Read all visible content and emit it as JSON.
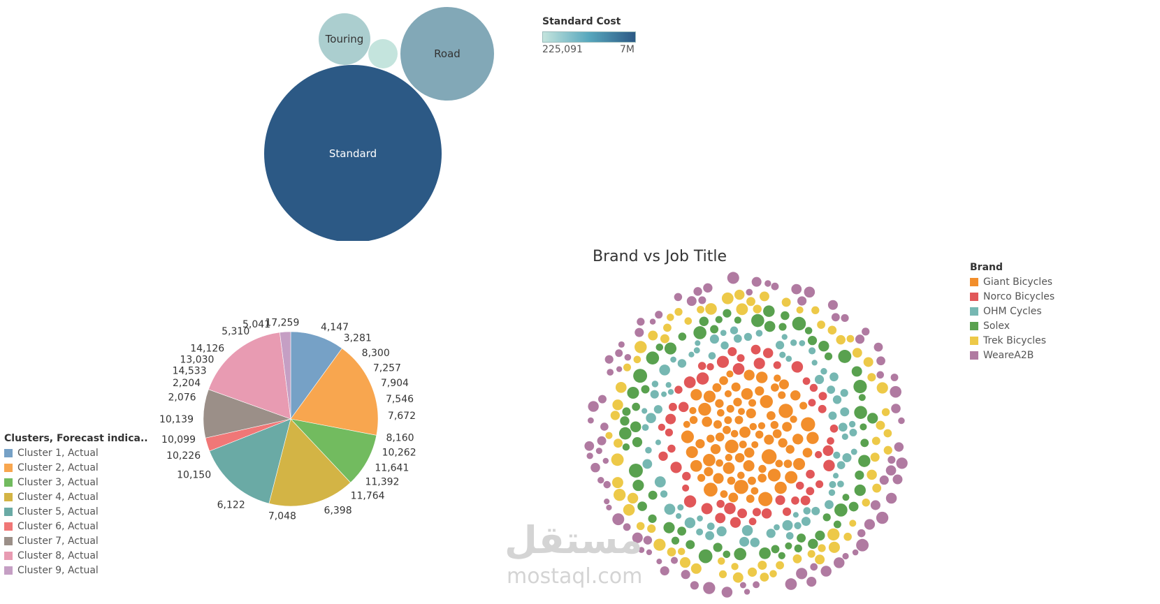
{
  "chart_data": [
    {
      "type": "bubble",
      "legend": {
        "title": "Standard Cost",
        "min_label": "225,091",
        "max_label": "7M",
        "color_low": "#c4e4dd",
        "color_high": "#2c5985"
      },
      "bubbles": [
        {
          "label": "Standard",
          "value": 7000000
        },
        {
          "label": "Road",
          "value": 1900000
        },
        {
          "label": "Touring",
          "value": 550000
        },
        {
          "label": "",
          "value": 225091
        }
      ]
    },
    {
      "type": "pie",
      "legend": {
        "title": "Clusters, Forecast indica..",
        "items": [
          {
            "name": "Cluster 1, Actual",
            "color": "#76a1c6"
          },
          {
            "name": "Cluster 2, Actual",
            "color": "#f8a64f"
          },
          {
            "name": "Cluster 3, Actual",
            "color": "#72bb5f"
          },
          {
            "name": "Cluster 4, Actual",
            "color": "#d3b445"
          },
          {
            "name": "Cluster 5, Actual",
            "color": "#6aaaa5"
          },
          {
            "name": "Cluster 6, Actual",
            "color": "#f07777"
          },
          {
            "name": "Cluster 7, Actual",
            "color": "#9b8f88"
          },
          {
            "name": "Cluster 8, Actual",
            "color": "#e89bb2"
          },
          {
            "name": "Cluster 9, Actual",
            "color": "#c59fc4"
          }
        ]
      },
      "slices": [
        {
          "cluster": 1,
          "value": 10
        },
        {
          "cluster": 2,
          "value": 18
        },
        {
          "cluster": 3,
          "value": 10
        },
        {
          "cluster": 4,
          "value": 16
        },
        {
          "cluster": 5,
          "value": 15
        },
        {
          "cluster": 6,
          "value": 2.5
        },
        {
          "cluster": 7,
          "value": 9
        },
        {
          "cluster": 8,
          "value": 17.5
        },
        {
          "cluster": 9,
          "value": 2
        }
      ],
      "data_labels": [
        "17,259",
        "4,147",
        "3,281",
        "8,300",
        "7,257",
        "7,904",
        "7,546",
        "7,672",
        "8,160",
        "10,262",
        "11,641",
        "11,392",
        "11,764",
        "6,398",
        "7,048",
        "6,122",
        "10,150",
        "10,226",
        "10,099",
        "10,139",
        "2,076",
        "2,204",
        "14,533",
        "13,030",
        "14,126",
        "5,310",
        "5,041"
      ]
    },
    {
      "type": "packed-bubble",
      "title": "Brand vs Job Title",
      "legend": {
        "title": "Brand",
        "items": [
          {
            "name": "Giant Bicycles",
            "color": "#f28e2b"
          },
          {
            "name": "Norco Bicycles",
            "color": "#e15759"
          },
          {
            "name": "OHM Cycles",
            "color": "#76b7b2"
          },
          {
            "name": "Solex",
            "color": "#59a14f"
          },
          {
            "name": "Trek Bicycles",
            "color": "#edc948"
          },
          {
            "name": "WeareA2B",
            "color": "#b07aa1"
          }
        ]
      }
    }
  ],
  "watermark": {
    "arabic": "مستقل",
    "latin": "mostaql.com"
  }
}
